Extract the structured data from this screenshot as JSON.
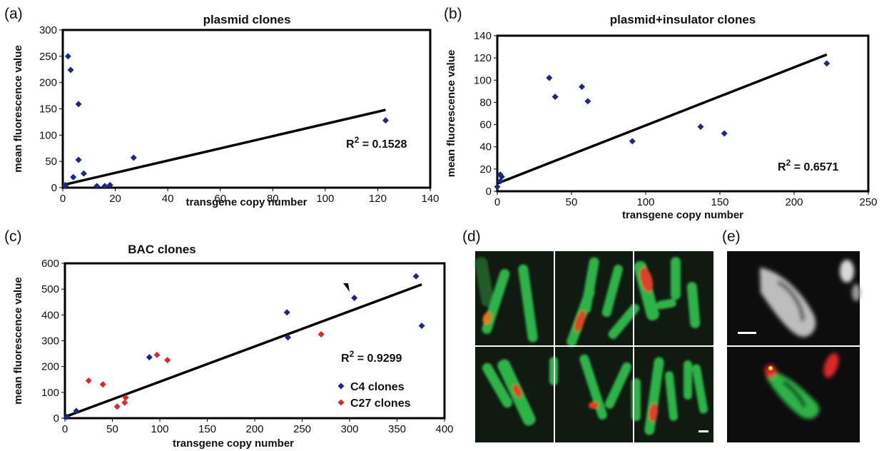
{
  "panel_letters": {
    "a": "(a)",
    "b": "(b)",
    "c": "(c)",
    "d": "(d)",
    "e": "(e)"
  },
  "colors": {
    "series_blue": "#1c2a7e",
    "series_red": "#e3262b",
    "trend": "#000000",
    "chromosome_green": "#2db34a",
    "signal_red": "#e0262b",
    "micro_bg": "#0f1a0f"
  },
  "chart_data": [
    {
      "type": "scatter",
      "title": "plasmid clones",
      "xlabel": "transgene copy number",
      "ylabel": "mean fluorescence value",
      "xlim": [
        0,
        140
      ],
      "ylim": [
        0,
        300
      ],
      "xticks": [
        0,
        20,
        40,
        60,
        80,
        100,
        120,
        140
      ],
      "yticks": [
        0,
        50,
        100,
        150,
        200,
        250,
        300
      ],
      "annotation": {
        "r2_prefix": "R",
        "r2_sup": "2",
        "r2_value": " = 0.1528"
      },
      "trendline": {
        "x": [
          0,
          123
        ],
        "y": [
          5,
          148
        ]
      },
      "series": [
        {
          "color": "#1c2a7e",
          "points": [
            [
              1,
              5
            ],
            [
              2,
              250
            ],
            [
              3,
              224
            ],
            [
              6,
              159
            ],
            [
              6,
              53
            ],
            [
              4,
              20
            ],
            [
              8,
              27
            ],
            [
              1,
              3
            ],
            [
              13,
              3
            ],
            [
              16,
              3
            ],
            [
              18,
              5
            ],
            [
              27,
              57
            ],
            [
              123,
              128
            ]
          ]
        }
      ]
    },
    {
      "type": "scatter",
      "title": "plasmid+insulator clones",
      "xlabel": "transgene copy number",
      "ylabel": "mean fluorescence value",
      "xlim": [
        0,
        250
      ],
      "ylim": [
        0,
        140
      ],
      "xticks": [
        0,
        50,
        100,
        150,
        200,
        250
      ],
      "yticks": [
        0,
        20,
        40,
        60,
        80,
        100,
        120,
        140
      ],
      "annotation": {
        "r2_prefix": "R",
        "r2_sup": "2",
        "r2_value": " = 0.6571"
      },
      "trendline": {
        "x": [
          0,
          222
        ],
        "y": [
          7,
          123
        ]
      },
      "series": [
        {
          "color": "#1c2a7e",
          "points": [
            [
              0,
              4
            ],
            [
              2,
              9
            ],
            [
              2,
              15
            ],
            [
              3,
              13
            ],
            [
              35,
              102
            ],
            [
              39,
              85
            ],
            [
              57,
              94
            ],
            [
              61,
              81
            ],
            [
              91,
              45
            ],
            [
              137,
              58
            ],
            [
              153,
              52
            ],
            [
              222,
              115
            ]
          ]
        }
      ]
    },
    {
      "type": "scatter",
      "title": "BAC clones",
      "xlabel": "transgene copy number",
      "ylabel": "mean fluorescence value",
      "xlim": [
        0,
        400
      ],
      "ylim": [
        0,
        600
      ],
      "xticks": [
        0,
        50,
        100,
        150,
        200,
        250,
        300,
        350,
        400
      ],
      "yticks": [
        0,
        100,
        200,
        300,
        400,
        500,
        600
      ],
      "annotation": {
        "r2_prefix": "R",
        "r2_sup": "2",
        "r2_value": " = 0.9299"
      },
      "trendline": {
        "x": [
          0,
          376
        ],
        "y": [
          5,
          518
        ]
      },
      "arrowhead_at": [
        303,
        465
      ],
      "legend": [
        {
          "label": "C4 clones",
          "color": "#1c2a7e"
        },
        {
          "label": "C27 clones",
          "color": "#e3262b"
        }
      ],
      "series": [
        {
          "name": "C4 clones",
          "color": "#1c2a7e",
          "points": [
            [
              2,
              5
            ],
            [
              12,
              28
            ],
            [
              89,
              236
            ],
            [
              234,
              410
            ],
            [
              235,
              313
            ],
            [
              305,
              466
            ],
            [
              370,
              550
            ],
            [
              376,
              358
            ]
          ]
        },
        {
          "name": "C27 clones",
          "color": "#e3262b",
          "points": [
            [
              25,
              145
            ],
            [
              40,
              131
            ],
            [
              55,
              45
            ],
            [
              63,
              60
            ],
            [
              64,
              80
            ],
            [
              97,
              245
            ],
            [
              108,
              225
            ],
            [
              270,
              325
            ]
          ]
        }
      ]
    }
  ]
}
